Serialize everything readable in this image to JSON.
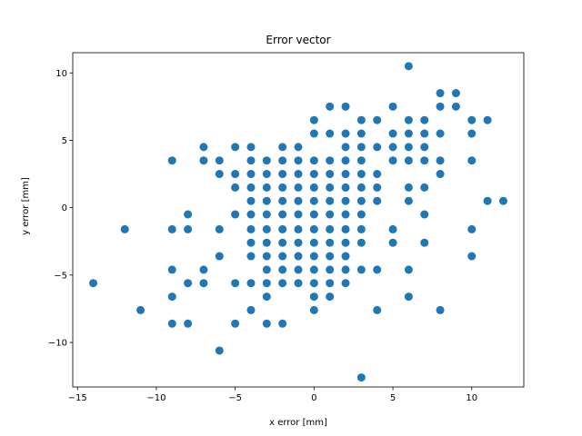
{
  "chart_data": {
    "type": "scatter",
    "title": "Error vector",
    "xlabel": "x error [mm]",
    "ylabel": "y error [mm]",
    "xlim": [
      -15.3,
      13.3
    ],
    "ylim": [
      -13.3,
      11.5
    ],
    "xticks": [
      -15,
      -10,
      -5,
      0,
      5,
      10
    ],
    "xtick_labels": [
      "−15",
      "−10",
      "−5",
      "0",
      "5",
      "10"
    ],
    "yticks": [
      -10,
      -5,
      0,
      5,
      10
    ],
    "ytick_labels": [
      "−10",
      "−5",
      "0",
      "5",
      "10"
    ],
    "grid": false,
    "marker_color": "#1f77b4",
    "points": [
      [
        6,
        10.5
      ],
      [
        8,
        8.5
      ],
      [
        9,
        8.5
      ],
      [
        1,
        7.5
      ],
      [
        2,
        7.5
      ],
      [
        5,
        7.5
      ],
      [
        8,
        7.5
      ],
      [
        9,
        7.5
      ],
      [
        0,
        6.5
      ],
      [
        3,
        6.5
      ],
      [
        4,
        6.5
      ],
      [
        6,
        6.5
      ],
      [
        7,
        6.5
      ],
      [
        10,
        6.5
      ],
      [
        11,
        6.5
      ],
      [
        0,
        5.5
      ],
      [
        1,
        5.5
      ],
      [
        2,
        5.5
      ],
      [
        3,
        5.5
      ],
      [
        5,
        5.5
      ],
      [
        6,
        5.5
      ],
      [
        7,
        5.5
      ],
      [
        8,
        5.5
      ],
      [
        10,
        5.5
      ],
      [
        -7,
        4.5
      ],
      [
        -5,
        4.5
      ],
      [
        -4,
        4.5
      ],
      [
        -2,
        4.5
      ],
      [
        -1,
        4.5
      ],
      [
        2,
        4.5
      ],
      [
        3,
        4.5
      ],
      [
        4,
        4.5
      ],
      [
        5,
        4.5
      ],
      [
        6,
        4.5
      ],
      [
        7,
        4.5
      ],
      [
        -9,
        3.5
      ],
      [
        -7,
        3.5
      ],
      [
        -6,
        3.5
      ],
      [
        -4,
        3.5
      ],
      [
        -3,
        3.5
      ],
      [
        -2,
        3.5
      ],
      [
        -1,
        3.5
      ],
      [
        0,
        3.5
      ],
      [
        1,
        3.5
      ],
      [
        2,
        3.5
      ],
      [
        3,
        3.5
      ],
      [
        5,
        3.5
      ],
      [
        6,
        3.5
      ],
      [
        7,
        3.5
      ],
      [
        8,
        3.5
      ],
      [
        10,
        3.5
      ],
      [
        -6,
        2.5
      ],
      [
        -5,
        2.5
      ],
      [
        -4,
        2.5
      ],
      [
        -3,
        2.5
      ],
      [
        -2,
        2.5
      ],
      [
        -1,
        2.5
      ],
      [
        0,
        2.5
      ],
      [
        1,
        2.5
      ],
      [
        2,
        2.5
      ],
      [
        3,
        2.5
      ],
      [
        4,
        2.5
      ],
      [
        8,
        2.5
      ],
      [
        -5,
        1.5
      ],
      [
        -4,
        1.5
      ],
      [
        -3,
        1.5
      ],
      [
        -2,
        1.5
      ],
      [
        -1,
        1.5
      ],
      [
        0,
        1.5
      ],
      [
        1,
        1.5
      ],
      [
        2,
        1.5
      ],
      [
        3,
        1.5
      ],
      [
        4,
        1.5
      ],
      [
        6,
        1.5
      ],
      [
        7,
        1.5
      ],
      [
        -4,
        0.5
      ],
      [
        -3,
        0.5
      ],
      [
        -2,
        0.5
      ],
      [
        -1,
        0.5
      ],
      [
        0,
        0.5
      ],
      [
        1,
        0.5
      ],
      [
        2,
        0.5
      ],
      [
        3,
        0.5
      ],
      [
        4,
        0.5
      ],
      [
        6,
        0.5
      ],
      [
        11,
        0.5
      ],
      [
        12,
        0.5
      ],
      [
        -8,
        -0.5
      ],
      [
        -5,
        -0.5
      ],
      [
        -4,
        -0.5
      ],
      [
        -3,
        -0.5
      ],
      [
        -2,
        -0.5
      ],
      [
        -1,
        -0.5
      ],
      [
        0,
        -0.5
      ],
      [
        1,
        -0.5
      ],
      [
        2,
        -0.5
      ],
      [
        3,
        -0.5
      ],
      [
        7,
        -0.5
      ],
      [
        -12,
        -1.6
      ],
      [
        -9,
        -1.6
      ],
      [
        -8,
        -1.6
      ],
      [
        -6,
        -1.6
      ],
      [
        -4,
        -1.6
      ],
      [
        -3,
        -1.6
      ],
      [
        -2,
        -1.6
      ],
      [
        -1,
        -1.6
      ],
      [
        0,
        -1.6
      ],
      [
        1,
        -1.6
      ],
      [
        2,
        -1.6
      ],
      [
        3,
        -1.6
      ],
      [
        5,
        -1.6
      ],
      [
        10,
        -1.6
      ],
      [
        -4,
        -2.6
      ],
      [
        -3,
        -2.6
      ],
      [
        -2,
        -2.6
      ],
      [
        -1,
        -2.6
      ],
      [
        0,
        -2.6
      ],
      [
        1,
        -2.6
      ],
      [
        2,
        -2.6
      ],
      [
        3,
        -2.6
      ],
      [
        5,
        -2.6
      ],
      [
        7,
        -2.6
      ],
      [
        -6,
        -3.6
      ],
      [
        -4,
        -3.6
      ],
      [
        -3,
        -3.6
      ],
      [
        -2,
        -3.6
      ],
      [
        -1,
        -3.6
      ],
      [
        0,
        -3.6
      ],
      [
        1,
        -3.6
      ],
      [
        2,
        -3.6
      ],
      [
        10,
        -3.6
      ],
      [
        -9,
        -4.6
      ],
      [
        -7,
        -4.6
      ],
      [
        -3,
        -4.6
      ],
      [
        -2,
        -4.6
      ],
      [
        -1,
        -4.6
      ],
      [
        0,
        -4.6
      ],
      [
        1,
        -4.6
      ],
      [
        2,
        -4.6
      ],
      [
        3,
        -4.6
      ],
      [
        4,
        -4.6
      ],
      [
        6,
        -4.6
      ],
      [
        -14,
        -5.6
      ],
      [
        -8,
        -5.6
      ],
      [
        -7,
        -5.6
      ],
      [
        -5,
        -5.6
      ],
      [
        -4,
        -5.6
      ],
      [
        -3,
        -5.6
      ],
      [
        -2,
        -5.6
      ],
      [
        -1,
        -5.6
      ],
      [
        0,
        -5.6
      ],
      [
        1,
        -5.6
      ],
      [
        2,
        -5.6
      ],
      [
        -9,
        -6.6
      ],
      [
        -3,
        -6.6
      ],
      [
        0,
        -6.6
      ],
      [
        1,
        -6.6
      ],
      [
        6,
        -6.6
      ],
      [
        -11,
        -7.6
      ],
      [
        -4,
        -7.6
      ],
      [
        0,
        -7.6
      ],
      [
        4,
        -7.6
      ],
      [
        8,
        -7.6
      ],
      [
        -9,
        -8.6
      ],
      [
        -8,
        -8.6
      ],
      [
        -5,
        -8.6
      ],
      [
        -3,
        -8.6
      ],
      [
        -2,
        -8.6
      ],
      [
        -6,
        -10.6
      ],
      [
        3,
        -12.6
      ]
    ]
  }
}
